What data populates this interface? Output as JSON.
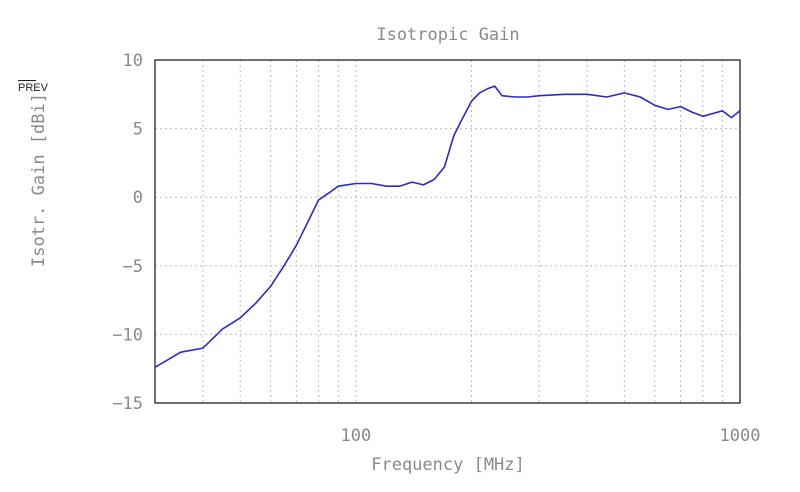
{
  "chart_data": {
    "type": "line",
    "title": "Isotropic Gain",
    "xlabel": "Frequency [MHz]",
    "ylabel": "Isotr. Gain [dBi]",
    "x_scale": "log",
    "xlim": [
      30,
      1000
    ],
    "ylim": [
      -15,
      10
    ],
    "xticks": [
      100,
      1000
    ],
    "yticks": [
      -15,
      -10,
      -5,
      0,
      5,
      10
    ],
    "grid": true,
    "series": [
      {
        "color": "#2a2ad0",
        "x": [
          30,
          35,
          40,
          45,
          50,
          55,
          60,
          65,
          70,
          75,
          80,
          85,
          90,
          100,
          110,
          120,
          130,
          140,
          150,
          160,
          170,
          180,
          190,
          200,
          210,
          220,
          230,
          240,
          260,
          280,
          300,
          350,
          400,
          450,
          500,
          550,
          600,
          650,
          700,
          750,
          800,
          850,
          900,
          950,
          1000
        ],
        "y": [
          -12.4,
          -11.3,
          -11.0,
          -9.6,
          -8.8,
          -7.7,
          -6.5,
          -5.0,
          -3.5,
          -1.8,
          -0.2,
          0.3,
          0.8,
          1.0,
          1.0,
          0.8,
          0.8,
          1.1,
          0.9,
          1.3,
          2.2,
          4.5,
          5.8,
          7.0,
          7.6,
          7.9,
          8.1,
          7.4,
          7.3,
          7.3,
          7.4,
          7.5,
          7.5,
          7.3,
          7.6,
          7.3,
          6.7,
          6.4,
          6.6,
          6.2,
          5.9,
          6.1,
          6.3,
          5.8,
          6.3
        ]
      }
    ]
  },
  "overlay": {
    "prev_label": "PREV"
  }
}
